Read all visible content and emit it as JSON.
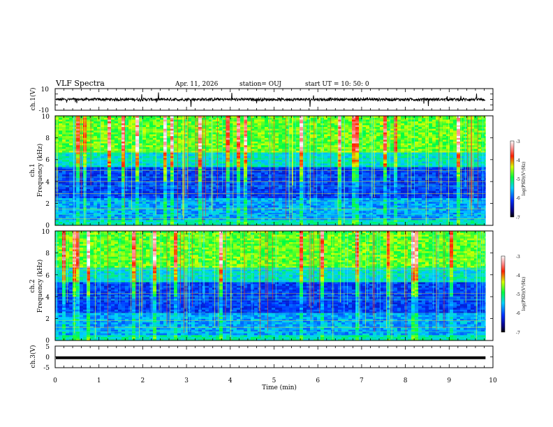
{
  "header": {
    "title": "VLF Spectra",
    "date": "Apr. 11, 2026",
    "station": "station= OUJ",
    "start": "start  UT =   10: 50: 0"
  },
  "chart_data": [
    {
      "type": "line",
      "name": "ch1-waveform",
      "ylabel": "ch.1(V)",
      "ylim": [
        -10,
        10
      ],
      "yticks": [
        "10",
        "-10"
      ],
      "xlim": [
        0,
        10
      ],
      "x_data_extent": [
        0,
        9.83
      ],
      "trace": "noisy waveform centred near 0 V"
    },
    {
      "type": "heatmap",
      "name": "ch1-spectrogram",
      "ylabel_lines": [
        "ch.1",
        "Frequency (kHz)"
      ],
      "ylim": [
        0,
        10
      ],
      "yticks": [
        "0",
        "2",
        "4",
        "6",
        "8",
        "10"
      ],
      "xlim": [
        0,
        10
      ],
      "x_data_extent": [
        0,
        9.83
      ],
      "colorbar": {
        "label": "log(PSD)(V²/Hz)",
        "range": [
          -7,
          -3
        ],
        "ticks": [
          "-3",
          "-4",
          "-5",
          "-6",
          "-7"
        ]
      }
    },
    {
      "type": "heatmap",
      "name": "ch2-spectrogram",
      "ylabel_lines": [
        "ch.2",
        "Frequency (kHz)"
      ],
      "ylim": [
        0,
        10
      ],
      "yticks": [
        "0",
        "2",
        "4",
        "6",
        "8",
        "10"
      ],
      "xlim": [
        0,
        10
      ],
      "x_data_extent": [
        0,
        9.83
      ],
      "colorbar": {
        "label": "log(PSD)(V²/Hz)",
        "range": [
          -7,
          -3
        ],
        "ticks": [
          "-3",
          "-4",
          "-5",
          "-6",
          "-7"
        ]
      }
    },
    {
      "type": "line",
      "name": "ch3-waveform",
      "ylabel": "ch.3(V)",
      "ylim": [
        -5,
        5
      ],
      "yticks": [
        "5",
        "0",
        "-5"
      ],
      "xlim": [
        0,
        10
      ],
      "x_data_extent": [
        0,
        9.83
      ],
      "level": -0.4,
      "trace": "flat thick line"
    }
  ],
  "xaxis": {
    "label": "Time (min)",
    "ticks": [
      "0",
      "1",
      "2",
      "3",
      "4",
      "5",
      "6",
      "7",
      "8",
      "9",
      "10"
    ]
  }
}
